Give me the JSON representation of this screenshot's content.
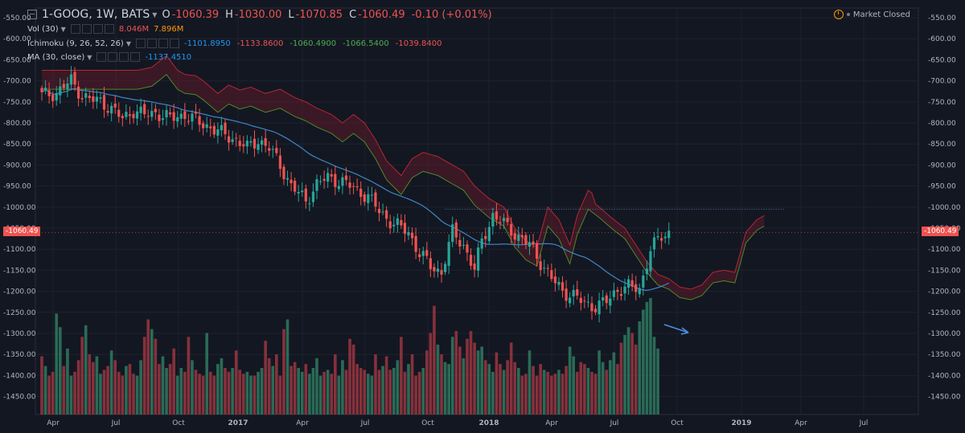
{
  "symbol": {
    "name": "1-GOOG, 1W, BATS",
    "ohlc": [
      {
        "k": "O",
        "v": "-1060.39"
      },
      {
        "k": "H",
        "v": "-1030.00"
      },
      {
        "k": "L",
        "v": "-1070.85"
      },
      {
        "k": "C",
        "v": "-1060.49"
      },
      {
        "k": "",
        "v": "-0.10 (+0.01%)"
      }
    ]
  },
  "indicators": {
    "vol": {
      "label": "Vol (30)",
      "v1": "8.046M",
      "v2": "7.896M",
      "c1": "#ef5350",
      "c2": "#ff9800"
    },
    "ichimoku": {
      "label": "Ichimoku (9, 26, 52, 26)",
      "values": [
        "-1101.8950",
        "-1133.8600",
        "-1060.4900",
        "-1066.5400",
        "-1039.8400"
      ],
      "colors": [
        "#2196f3",
        "#ef5350",
        "#4caf50",
        "#4caf50",
        "#ef5350"
      ]
    },
    "ma": {
      "label": "MA (30, close)",
      "value": "-1137.4510",
      "color": "#2196f3"
    }
  },
  "market_status": "Market Closed",
  "last_price_label": "-1060.49",
  "colors": {
    "up": "#26a69a",
    "down": "#ef5350",
    "ma": "#3d86c6",
    "cloud": "#6d1a2a",
    "lagging": "#4c8b2a"
  },
  "chart_data": {
    "type": "candlestick",
    "yticks": [
      "-550.00",
      "-600.00",
      "-650.00",
      "-700.00",
      "-750.00",
      "-800.00",
      "-850.00",
      "-900.00",
      "-950.00",
      "-1000.00",
      "-1050.00",
      "-1100.00",
      "-1150.00",
      "-1200.00",
      "-1250.00",
      "-1300.00",
      "-1350.00",
      "-1400.00",
      "-1450.00"
    ],
    "ylim": [
      -550,
      -1500
    ],
    "xticks": [
      "Apr",
      "Jul",
      "Oct",
      "2017",
      "Apr",
      "Jul",
      "Oct",
      "2018",
      "Apr",
      "Jul",
      "Oct",
      "2019",
      "Apr",
      "Jul"
    ],
    "bold_xticks": [
      "2017",
      "2018",
      "2019"
    ],
    "last_price": -1060.49,
    "close_path": [
      [
        0,
        -735
      ],
      [
        4,
        -728
      ],
      [
        8,
        -700
      ],
      [
        11,
        -735
      ],
      [
        13,
        -745
      ],
      [
        16,
        -748
      ],
      [
        18,
        -760
      ],
      [
        22,
        -790
      ],
      [
        25,
        -770
      ],
      [
        28,
        -782
      ],
      [
        31,
        -775
      ],
      [
        35,
        -790
      ],
      [
        39,
        -780
      ],
      [
        43,
        -800
      ],
      [
        46,
        -810
      ],
      [
        49,
        -825
      ],
      [
        53,
        -840
      ],
      [
        56,
        -860
      ],
      [
        59,
        -840
      ],
      [
        62,
        -860
      ],
      [
        65,
        -900
      ],
      [
        68,
        -950
      ],
      [
        72,
        -985
      ],
      [
        75,
        -945
      ],
      [
        78,
        -930
      ],
      [
        82,
        -940
      ],
      [
        86,
        -960
      ],
      [
        89,
        -975
      ],
      [
        92,
        -1010
      ],
      [
        96,
        -1040
      ],
      [
        100,
        -1060
      ],
      [
        103,
        -1110
      ],
      [
        106,
        -1140
      ],
      [
        109,
        -1155
      ],
      [
        112,
        -1060
      ],
      [
        115,
        -1090
      ],
      [
        118,
        -1150
      ],
      [
        120,
        -1080
      ],
      [
        123,
        -1020
      ],
      [
        126,
        -1040
      ],
      [
        130,
        -1070
      ],
      [
        133,
        -1090
      ],
      [
        136,
        -1130
      ],
      [
        139,
        -1170
      ],
      [
        142,
        -1200
      ],
      [
        145,
        -1210
      ],
      [
        148,
        -1230
      ],
      [
        151,
        -1235
      ],
      [
        154,
        -1225
      ],
      [
        157,
        -1195
      ],
      [
        160,
        -1190
      ],
      [
        163,
        -1195
      ],
      [
        166,
        -1100
      ],
      [
        169,
        -1070
      ],
      [
        171,
        -1060
      ]
    ],
    "volume": [
      0.3,
      0.25,
      0.2,
      0.22,
      0.52,
      0.45,
      0.25,
      0.34,
      0.2,
      0.22,
      0.28,
      0.4,
      0.46,
      0.31,
      0.27,
      0.3,
      0.21,
      0.23,
      0.25,
      0.33,
      0.28,
      0.22,
      0.2,
      0.25,
      0.26,
      0.21,
      0.2,
      0.28,
      0.4,
      0.49,
      0.44,
      0.39,
      0.26,
      0.3,
      0.24,
      0.26,
      0.34,
      0.2,
      0.24,
      0.22,
      0.4,
      0.28,
      0.23,
      0.21,
      0.2,
      0.42,
      0.22,
      0.2,
      0.26,
      0.29,
      0.24,
      0.22,
      0.24,
      0.33,
      0.23,
      0.21,
      0.22,
      0.2,
      0.2,
      0.22,
      0.24,
      0.38,
      0.29,
      0.25,
      0.31,
      0.2,
      0.44,
      0.49,
      0.25,
      0.27,
      0.24,
      0.22,
      0.26,
      0.21,
      0.24,
      0.29,
      0.2,
      0.22,
      0.23,
      0.21,
      0.31,
      0.2,
      0.28,
      0.23,
      0.39,
      0.36,
      0.26,
      0.24,
      0.23,
      0.21,
      0.2,
      0.31,
      0.23,
      0.25,
      0.3,
      0.23,
      0.24,
      0.28,
      0.4,
      0.22,
      0.26,
      0.31,
      0.2,
      0.22,
      0.24,
      0.33,
      0.42,
      0.56,
      0.36,
      0.31,
      0.27,
      0.26,
      0.4,
      0.43,
      0.35,
      0.29,
      0.39,
      0.43,
      0.37,
      0.33,
      0.35,
      0.28,
      0.26,
      0.22,
      0.32,
      0.26,
      0.23,
      0.28,
      0.37,
      0.27,
      0.24,
      0.2,
      0.21,
      0.33,
      0.25,
      0.2,
      0.26,
      0.23,
      0.22,
      0.2,
      0.21,
      0.23,
      0.21,
      0.25,
      0.35,
      0.3,
      0.22,
      0.27,
      0.26,
      0.24,
      0.22,
      0.21,
      0.33,
      0.27,
      0.23,
      0.28,
      0.32,
      0.26,
      0.37,
      0.41,
      0.45,
      0.42,
      0.36,
      0.48,
      0.54,
      0.58,
      0.6,
      0.4,
      0.34
    ]
  }
}
